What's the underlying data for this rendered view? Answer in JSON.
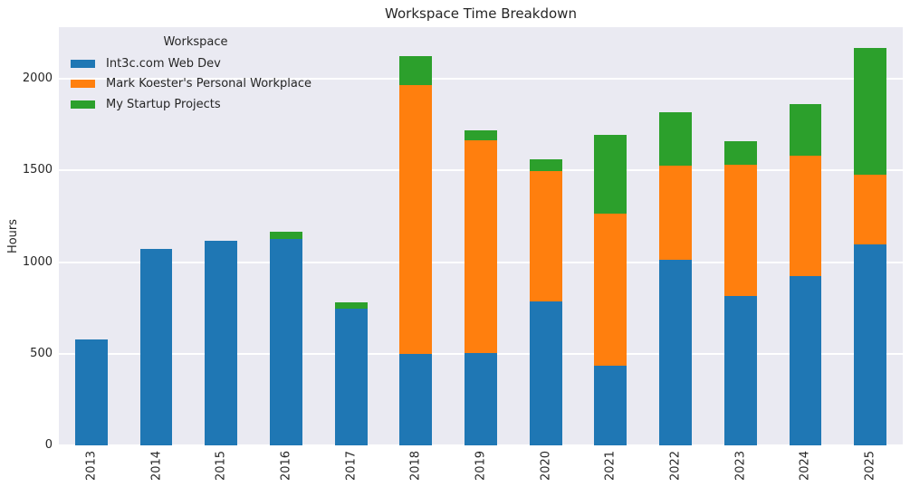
{
  "title": "Workspace Time Breakdown",
  "colors": {
    "figure_background": "#ffffff",
    "plot_background": "#eaeaf2",
    "gridline": "#ffffff",
    "text": "#262626"
  },
  "legend": {
    "title": "Workspace"
  },
  "chart_data": {
    "type": "bar",
    "stacked": true,
    "title": "Workspace Time Breakdown",
    "xlabel": "",
    "ylabel": "Hours",
    "categories": [
      "2013",
      "2014",
      "2015",
      "2016",
      "2017",
      "2018",
      "2019",
      "2020",
      "2021",
      "2022",
      "2023",
      "2024",
      "2025"
    ],
    "series": [
      {
        "name": "Int3c.com Web Dev",
        "color": "#1f77b4",
        "values": [
          580,
          1070,
          1115,
          1125,
          745,
          500,
          505,
          785,
          435,
          1015,
          815,
          925,
          1095
        ]
      },
      {
        "name": "Mark Koester's Personal Workplace",
        "color": "#ff7f0e",
        "values": [
          0,
          0,
          0,
          0,
          0,
          1465,
          1160,
          710,
          830,
          510,
          715,
          655,
          380
        ]
      },
      {
        "name": "My Startup Projects",
        "color": "#2ca02c",
        "values": [
          0,
          0,
          0,
          40,
          35,
          160,
          55,
          65,
          430,
          295,
          130,
          280,
          695
        ]
      }
    ],
    "ylim": [
      0,
      2282
    ],
    "yticks": [
      0,
      500,
      1000,
      1500,
      2000
    ],
    "grid": true,
    "legend_title": "Workspace",
    "legend_position": "upper left",
    "bar_width_fraction": 0.5
  }
}
